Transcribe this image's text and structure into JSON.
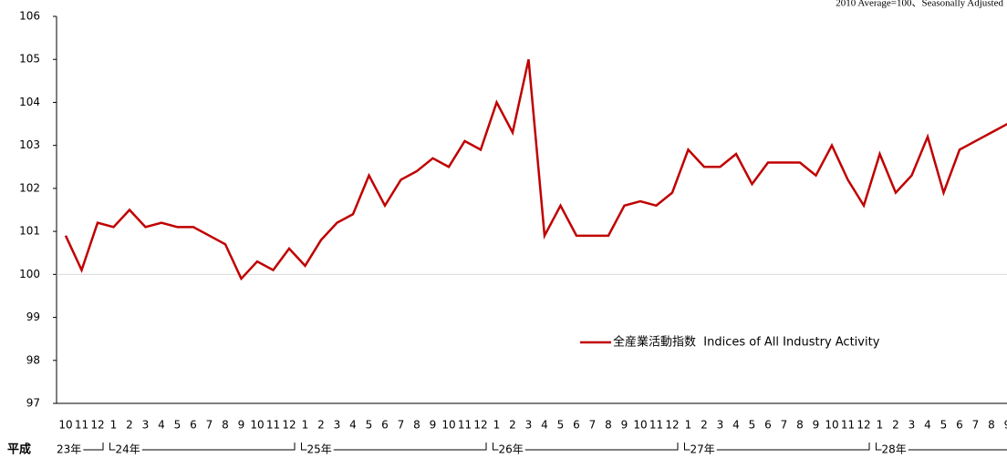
{
  "chart_data": {
    "type": "line",
    "subtitle": "2010 Average=100、Seasonally Adjusted",
    "era_label": "平成",
    "year_labels": [
      "23年",
      "24年",
      "25年",
      "26年",
      "27年",
      "28年"
    ],
    "categories": [
      "10",
      "11",
      "12",
      "1",
      "2",
      "3",
      "4",
      "5",
      "6",
      "7",
      "8",
      "9",
      "10",
      "11",
      "12",
      "1",
      "2",
      "3",
      "4",
      "5",
      "6",
      "7",
      "8",
      "9",
      "10",
      "11",
      "12",
      "1",
      "2",
      "3",
      "4",
      "5",
      "6",
      "7",
      "8",
      "9",
      "10",
      "11",
      "12",
      "1",
      "2",
      "3",
      "4",
      "5",
      "6",
      "7",
      "8",
      "9",
      "10",
      "11",
      "12",
      "1",
      "2",
      "3",
      "4",
      "5",
      "6",
      "7",
      "8",
      "9"
    ],
    "series": [
      {
        "name": "全産業活動指数  Indices of All Industry Activity",
        "color": "#c00000",
        "values": [
          100.9,
          100.1,
          101.2,
          101.1,
          101.5,
          101.1,
          101.2,
          101.1,
          101.1,
          100.9,
          100.7,
          99.9,
          100.3,
          100.1,
          100.6,
          100.2,
          100.8,
          101.2,
          101.4,
          102.3,
          101.6,
          102.2,
          102.4,
          102.7,
          102.5,
          103.1,
          102.9,
          104.0,
          103.3,
          105.0,
          100.9,
          101.6,
          100.9,
          100.9,
          100.9,
          101.6,
          101.7,
          101.6,
          101.9,
          102.9,
          102.5,
          102.5,
          102.8,
          102.1,
          102.6,
          102.6,
          102.6,
          102.3,
          103.0,
          102.2,
          101.6,
          102.8,
          101.9,
          102.3,
          103.2,
          101.9,
          102.9,
          103.1,
          103.3,
          103.5
        ]
      }
    ],
    "ylim": [
      97,
      106
    ],
    "yticks": [
      97,
      98,
      99,
      100,
      101,
      102,
      103,
      104,
      105,
      106
    ],
    "baseline": 100
  }
}
